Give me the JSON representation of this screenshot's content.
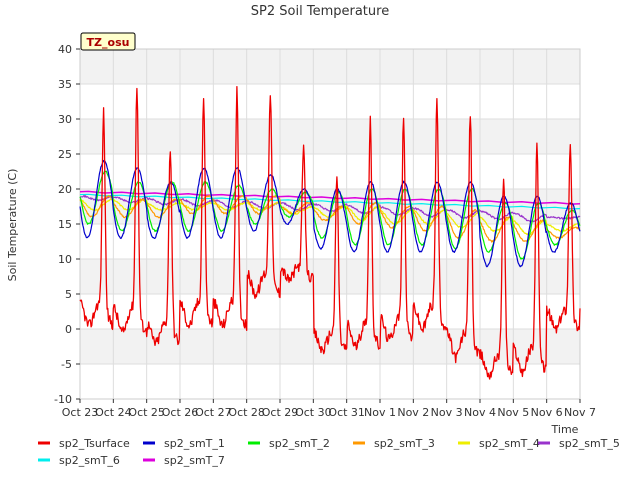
{
  "chart_data": {
    "type": "line",
    "title": "SP2 Soil Temperature",
    "xlabel": "Time",
    "ylabel": "Soil Temperature (C)",
    "ylim": [
      -10,
      40
    ],
    "xlim": [
      0,
      15
    ],
    "yticks": [
      -10,
      -5,
      0,
      5,
      10,
      15,
      20,
      25,
      30,
      35,
      40
    ],
    "xticks": [
      {
        "v": 0,
        "label": "Oct 23"
      },
      {
        "v": 1,
        "label": "Oct 24"
      },
      {
        "v": 2,
        "label": "Oct 25"
      },
      {
        "v": 3,
        "label": "Oct 26"
      },
      {
        "v": 4,
        "label": "Oct 27"
      },
      {
        "v": 5,
        "label": "Oct 28"
      },
      {
        "v": 6,
        "label": "Oct 29"
      },
      {
        "v": 7,
        "label": "Oct 30"
      },
      {
        "v": 8,
        "label": "Oct 31"
      },
      {
        "v": 9,
        "label": "Nov 1"
      },
      {
        "v": 10,
        "label": "Nov 2"
      },
      {
        "v": 11,
        "label": "Nov 3"
      },
      {
        "v": 12,
        "label": "Nov 4"
      },
      {
        "v": 13,
        "label": "Nov 5"
      },
      {
        "v": 14,
        "label": "Nov 6"
      },
      {
        "v": 15,
        "label": "Nov 7"
      }
    ],
    "annotation": "TZ_osu",
    "legend_position": "bottom",
    "daily": {
      "days": [
        0,
        1,
        2,
        3,
        4,
        5,
        6,
        7,
        8,
        9,
        10,
        11,
        12,
        13,
        14
      ],
      "surface_max": [
        31,
        35,
        26,
        33,
        34,
        34,
        26,
        22,
        30,
        30,
        33,
        31,
        22,
        27,
        27
      ],
      "surface_min": [
        0.5,
        -0.5,
        -2,
        0.5,
        0.5,
        5,
        7,
        -3,
        -2.5,
        -1.5,
        0,
        -4,
        -6.5,
        -6,
        0
      ],
      "smT1_max": [
        24,
        23,
        21,
        23,
        23,
        22,
        20,
        20,
        21,
        21,
        21,
        21,
        19,
        19,
        18
      ],
      "smT1_min": [
        13,
        13,
        13,
        13,
        13,
        14,
        15,
        11.5,
        11,
        11,
        11,
        11,
        9,
        9,
        11
      ],
      "smT2_max": [
        22.5,
        21,
        21,
        21,
        20.5,
        20,
        19.5,
        19.5,
        20,
        20,
        20,
        20,
        18,
        18,
        17
      ],
      "smT2_min": [
        15,
        14,
        14,
        14,
        14,
        15,
        16,
        13,
        12,
        12,
        12,
        11.5,
        11,
        10,
        12
      ],
      "smT3_max": [
        19,
        18.5,
        18.5,
        19,
        19,
        19,
        18,
        17.5,
        18,
        17.5,
        17.5,
        17,
        16,
        15.5,
        14.5
      ],
      "smT3_min": [
        16,
        16,
        16,
        16.5,
        16.5,
        16.5,
        16.5,
        15.5,
        15,
        14.5,
        14,
        13,
        12.5,
        12.5,
        13
      ],
      "smT4_max": [
        18.5,
        18.5,
        18,
        18,
        18,
        18,
        17.5,
        17.5,
        17.5,
        17,
        17,
        16.5,
        16,
        15.5,
        15
      ],
      "smT4_min": [
        17,
        17,
        17,
        17,
        17,
        17,
        16.5,
        16,
        15.5,
        15,
        15,
        14.5,
        14,
        13.5,
        14
      ],
      "smT5_max": [
        19,
        18.8,
        18.6,
        18.5,
        18.4,
        18.2,
        18,
        17.8,
        17.6,
        17.4,
        17.2,
        17,
        16.8,
        16.5,
        16
      ],
      "smT5_min": [
        18.4,
        18.1,
        17.8,
        17.6,
        17.4,
        17.2,
        17,
        16.8,
        16.5,
        16.3,
        16.1,
        15.9,
        15.7,
        15.4,
        15.8
      ],
      "smT6_range": [
        19.2,
        17.2
      ],
      "smT7_range": [
        19.6,
        17.9
      ]
    },
    "series": [
      {
        "name": "sp2_Tsurface",
        "color": "#ee0000",
        "width": 1.3
      },
      {
        "name": "sp2_smT_1",
        "color": "#0000cc",
        "width": 1.2
      },
      {
        "name": "sp2_smT_2",
        "color": "#00ee00",
        "width": 1.2
      },
      {
        "name": "sp2_smT_3",
        "color": "#ff9900",
        "width": 1.2
      },
      {
        "name": "sp2_smT_4",
        "color": "#eeee00",
        "width": 1.2
      },
      {
        "name": "sp2_smT_5",
        "color": "#9933cc",
        "width": 1.2
      },
      {
        "name": "sp2_smT_6",
        "color": "#00eeee",
        "width": 1.2
      },
      {
        "name": "sp2_smT_7",
        "color": "#dd00dd",
        "width": 1.5
      }
    ]
  }
}
